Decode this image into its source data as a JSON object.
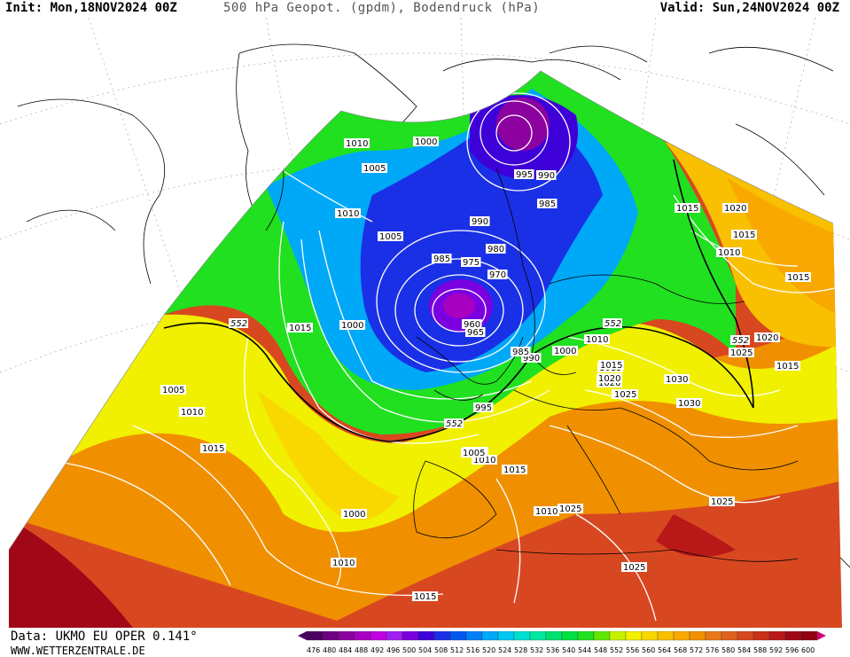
{
  "header": {
    "init": "Init: Mon,18NOV2024 00Z",
    "title": "500 hPa Geopot. (gpdm), Bodendruck (hPa)",
    "valid": "Valid: Sun,24NOV2024 00Z"
  },
  "footer": {
    "data_source": "Data: UKMO EU OPER 0.141°",
    "website": "WWW.WETTERZENTRALE.DE"
  },
  "legend": {
    "values": [
      "476",
      "480",
      "484",
      "488",
      "492",
      "496",
      "500",
      "504",
      "508",
      "512",
      "516",
      "520",
      "524",
      "528",
      "532",
      "536",
      "540",
      "544",
      "548",
      "552",
      "556",
      "560",
      "564",
      "568",
      "572",
      "576",
      "580",
      "584",
      "588",
      "592",
      "596",
      "600"
    ],
    "colors": [
      "#4b0060",
      "#6e0082",
      "#8c00a0",
      "#a800c0",
      "#c000e0",
      "#a020f0",
      "#7a00e0",
      "#3e00d8",
      "#1a30e6",
      "#0058f0",
      "#0080f8",
      "#00a8f8",
      "#00c8f0",
      "#00e0d0",
      "#00e8a0",
      "#00e070",
      "#00e040",
      "#20e020",
      "#60e800",
      "#c8f000",
      "#f0f000",
      "#f8d800",
      "#f8c000",
      "#f8a800",
      "#f09000",
      "#e87818",
      "#e06020",
      "#d84820",
      "#c83018",
      "#b81818",
      "#a00818",
      "#900010"
    ],
    "contour_label": "552"
  },
  "map": {
    "colors": {
      "ocean": "#ffffff",
      "deep_low": "#8c00a0",
      "low": "#1a30e6",
      "mid_low": "#00a8f8",
      "trough": "#20e020",
      "ridge": "#f0f000",
      "warm": "#f8a800",
      "hot": "#d84820",
      "very_hot": "#a00818",
      "coast": "#000000",
      "isobar": "#ffffff"
    },
    "pressure_labels": [
      "1010",
      "1000",
      "1005",
      "1010",
      "1005",
      "985",
      "990",
      "995",
      "1015",
      "1020",
      "1015",
      "1010",
      "1015",
      "1020",
      "1015",
      "1025",
      "1030",
      "1030",
      "1025",
      "1015",
      "1020",
      "1025",
      "1010",
      "1000",
      "990",
      "985",
      "980",
      "975",
      "970",
      "960",
      "965",
      "985",
      "990",
      "1000",
      "1005",
      "1010",
      "1015",
      "995",
      "1005",
      "1010",
      "1015",
      "1000",
      "1010",
      "1015",
      "1020",
      "1025",
      "1025",
      "1025",
      "1005",
      "1010",
      "1015",
      "1015"
    ],
    "geopotential_labels": [
      "552",
      "552",
      "552",
      "552"
    ],
    "lows": [
      "960",
      "965"
    ]
  }
}
